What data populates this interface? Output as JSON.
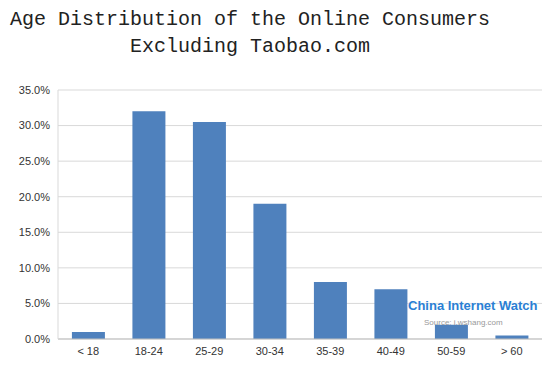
{
  "chart_data": {
    "type": "bar",
    "title": [
      "Age Distribution of the Online Consumers",
      "Excluding Taobao.com"
    ],
    "categories": [
      "< 18",
      "18-24",
      "25-29",
      "30-34",
      "35-39",
      "40-49",
      "50-59",
      "> 60"
    ],
    "values": [
      1.0,
      32.0,
      30.5,
      19.0,
      8.0,
      7.0,
      2.0,
      0.5
    ],
    "color": "#4f81bd",
    "ylim": [
      0,
      35
    ],
    "yticks": [
      {
        "value": 0,
        "label": "0.0%"
      },
      {
        "value": 5,
        "label": "5.0%"
      },
      {
        "value": 10,
        "label": "10.0%"
      },
      {
        "value": 15,
        "label": "15.0%"
      },
      {
        "value": 20,
        "label": "20.0%"
      },
      {
        "value": 25,
        "label": "25.0%"
      },
      {
        "value": 30,
        "label": "30.0%"
      },
      {
        "value": 35,
        "label": "35.0%"
      }
    ],
    "grid": true,
    "annotations": [
      "China Internet Watch",
      "Source: i.wshang.com"
    ]
  }
}
